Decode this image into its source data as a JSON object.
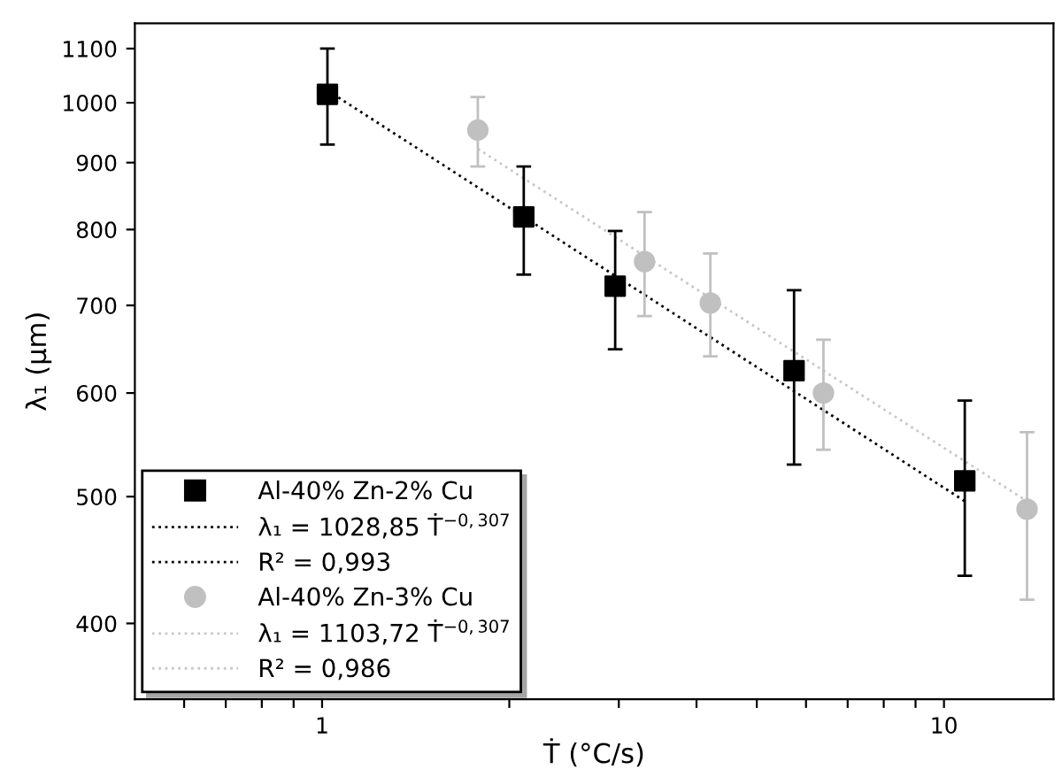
{
  "chart_data": {
    "type": "scatter",
    "xlabel": "Ṫ (°C/s)",
    "ylabel": "λ₁ (µm)",
    "log": "xy",
    "xlim": [
      0.5,
      15
    ],
    "ylim": [
      350,
      1150
    ],
    "xticks": [
      {
        "value": 0.6,
        "label": null
      },
      {
        "value": 0.7,
        "label": null
      },
      {
        "value": 0.8,
        "label": null
      },
      {
        "value": 0.9,
        "label": null
      },
      1,
      {
        "value": 2,
        "label": null
      },
      {
        "value": 3,
        "label": null
      },
      {
        "value": 4,
        "label": null
      },
      {
        "value": 5,
        "label": null
      },
      {
        "value": 6,
        "label": null
      },
      {
        "value": 7,
        "label": null
      },
      {
        "value": 8,
        "label": null
      },
      {
        "value": 9,
        "label": null
      },
      10
    ],
    "yticks": [
      400,
      500,
      600,
      700,
      800,
      900,
      1000,
      1100
    ],
    "grid": false,
    "legend": "bottom left",
    "series": [
      {
        "name": "Al-40% Zn-2% Cu",
        "marker": "square",
        "color": "#000000",
        "x": [
          1.02,
          2.11,
          2.96,
          5.74,
          10.8
        ],
        "values": [
          1015,
          818,
          724,
          624,
          514
        ],
        "errors": [
          [
            929,
            1100
          ],
          [
            739,
            894
          ],
          [
            648,
            798
          ],
          [
            529,
            719
          ],
          [
            435,
            592
          ]
        ]
      },
      {
        "name": "λ₁ = 1028,85 Ṫ$^{−0,307}$",
        "type": "line",
        "line_style": "dotted",
        "color": "#000000",
        "x": [
          1.02,
          10.8
        ],
        "values": [
          1022,
          496
        ]
      },
      {
        "name": "Al-40% Zn-3% Cu",
        "marker": "circle",
        "color": "#c0c0c0",
        "x": [
          1.78,
          3.3,
          4.21,
          6.4,
          13.6
        ],
        "values": [
          953,
          756,
          703,
          600,
          489
        ],
        "errors": [
          [
            894,
            1010
          ],
          [
            687,
            825
          ],
          [
            640,
            767
          ],
          [
            543,
            659
          ],
          [
            417,
            560
          ]
        ]
      },
      {
        "name": "λ₁ = 1103,72 Ṫ$^{−0,307}$",
        "type": "line",
        "line_style": "dotted",
        "color": "#c8c8c8",
        "x": [
          1.78,
          13.6
        ],
        "values": [
          922,
          496
        ]
      }
    ],
    "annotations": [
      "R² = 0,993",
      "R² = 0,986"
    ]
  }
}
